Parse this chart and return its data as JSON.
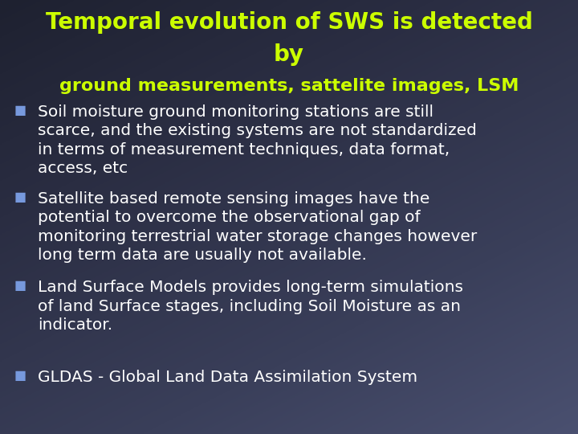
{
  "title_line1": "Temporal evolution of SWS is detected",
  "title_line2": "by",
  "subtitle": "ground measurements, sattelite images, LSM",
  "title_color": "#CCFF00",
  "subtitle_color": "#CCFF00",
  "bullet_color": "#7799DD",
  "text_color": "#FFFFFF",
  "bg_color_topleft": "#2a2d3e",
  "bg_color_bottomright": "#4a4f6a",
  "bullets": [
    "Soil moisture ground monitoring stations are still\nscarce, and the existing systems are not standardized\nin terms of measurement techniques, data format,\naccess, etc",
    "Satellite based remote sensing images have the\npotential to overcome the observational gap of\nmonitoring terrestrial water storage changes however\nlong term data are usually not available.",
    "Land Surface Models provides long-term simulations\nof land Surface stages, including Soil Moisture as an\nindicator.",
    "GLDAS - Global Land Data Assimilation System"
  ],
  "title_fontsize": 20,
  "subtitle_fontsize": 16,
  "bullet_fontsize": 14.5,
  "fig_width": 7.2,
  "fig_height": 5.4,
  "dpi": 100
}
